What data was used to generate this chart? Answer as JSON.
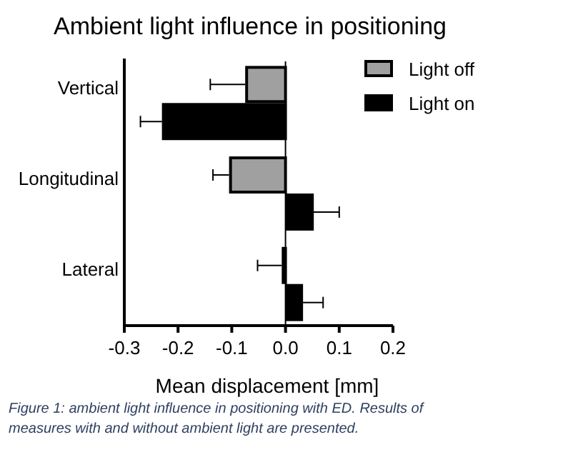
{
  "chart_data": {
    "type": "bar",
    "orientation": "horizontal",
    "title": "Ambient light influence in positioning",
    "xlabel": "Mean displacement [mm]",
    "categories": [
      "Vertical",
      "Longitudinal",
      "Lateral"
    ],
    "series": [
      {
        "name": "Light off",
        "color": "#a0a0a0",
        "values": [
          -0.075,
          -0.105,
          -0.007
        ],
        "errors": [
          0.065,
          0.03,
          0.045
        ]
      },
      {
        "name": "Light on",
        "color": "#000000",
        "values": [
          -0.23,
          0.05,
          0.03
        ],
        "errors": [
          0.04,
          0.05,
          0.04
        ]
      }
    ],
    "xlim": [
      -0.3,
      0.2
    ],
    "xticks": [
      {
        "value": -0.3,
        "label": "-0.3"
      },
      {
        "value": -0.2,
        "label": "-0.2"
      },
      {
        "value": -0.1,
        "label": "-0.1"
      },
      {
        "value": 0,
        "label": "0.0"
      },
      {
        "value": 0.1,
        "label": "0.1"
      },
      {
        "value": 0.2,
        "label": "0.2"
      }
    ],
    "ref_lines": [
      {
        "axis": "x",
        "value": 0
      }
    ],
    "legend": "top right",
    "annotations": [
      "Figure 1: ambient light influence in positioning with ED. Results of measures with and without ambient light are presented."
    ]
  }
}
